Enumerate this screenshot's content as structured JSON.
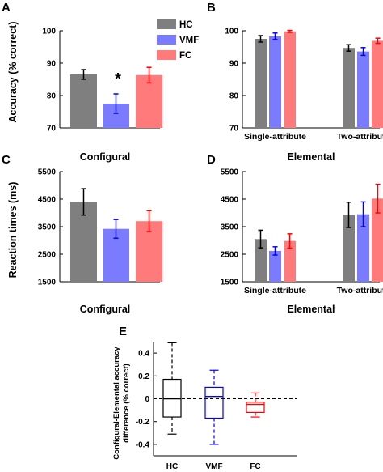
{
  "colors": {
    "HC": "#7f7f7f",
    "VMF": "#7b7bff",
    "FC": "#ff7b7b",
    "HC_err": "#000000",
    "VMF_err": "#0000ff",
    "FC_err": "#ff0000"
  },
  "legend": [
    "HC",
    "VMF",
    "FC"
  ],
  "shared_labels": {
    "accuracy_ylabel": "Accuracy (% correct)",
    "rt_ylabel": "Reaction times (ms)",
    "configural": "Configural",
    "elemental": "Elemental"
  },
  "chart_data": [
    {
      "panel": "A",
      "type": "bar",
      "ylabel": "Accuracy (% correct)",
      "xlabel": "Configural",
      "ylim": [
        70,
        100
      ],
      "yticks": [
        "70",
        "80",
        "90",
        "100"
      ],
      "series": [
        {
          "name": "HC",
          "value": 86.5,
          "err": 1.5
        },
        {
          "name": "VMF",
          "value": 77.5,
          "err": 3.0
        },
        {
          "name": "FC",
          "value": 86.3,
          "err": 2.4
        }
      ],
      "annotation": "*"
    },
    {
      "panel": "B",
      "type": "bar",
      "xlabel": "Elemental",
      "ylim": [
        70,
        100
      ],
      "yticks": [
        "70",
        "80",
        "90",
        "100"
      ],
      "categories": [
        "Single-attribute",
        "Two-attribute"
      ],
      "series": [
        {
          "name": "HC",
          "values": [
            97.5,
            94.7
          ],
          "err": [
            1.0,
            1.0
          ]
        },
        {
          "name": "VMF",
          "values": [
            98.3,
            93.6
          ],
          "err": [
            1.0,
            1.2
          ]
        },
        {
          "name": "FC",
          "values": [
            99.8,
            96.9
          ],
          "err": [
            0.3,
            0.8
          ]
        }
      ]
    },
    {
      "panel": "C",
      "type": "bar",
      "ylabel": "Reaction times (ms)",
      "xlabel": "Configural",
      "ylim": [
        1500,
        5500
      ],
      "yticks": [
        "1500",
        "2500",
        "3500",
        "4500",
        "5500"
      ],
      "series": [
        {
          "name": "HC",
          "value": 4400,
          "err": 480
        },
        {
          "name": "VMF",
          "value": 3420,
          "err": 340
        },
        {
          "name": "FC",
          "value": 3700,
          "err": 380
        }
      ]
    },
    {
      "panel": "D",
      "type": "bar",
      "xlabel": "Elemental",
      "ylim": [
        1500,
        5500
      ],
      "yticks": [
        "1500",
        "2500",
        "3500",
        "4500",
        "5500"
      ],
      "categories": [
        "Single-attribute",
        "Two-attribute"
      ],
      "series": [
        {
          "name": "HC",
          "values": [
            3050,
            3930
          ],
          "err": [
            320,
            460
          ]
        },
        {
          "name": "VMF",
          "values": [
            2620,
            3950
          ],
          "err": [
            150,
            450
          ]
        },
        {
          "name": "FC",
          "values": [
            2980,
            4520
          ],
          "err": [
            260,
            520
          ]
        }
      ]
    },
    {
      "panel": "E",
      "type": "boxplot",
      "ylabel": "Configural-Elemental accuracy difference (% correct)",
      "ylabel_lines": [
        "Configural-Elemental accuracy",
        "difference (% correct)"
      ],
      "ylim": [
        -0.5,
        0.5
      ],
      "yticks": [
        "-0.4",
        "-0.2",
        "0",
        "0.2",
        "0.4"
      ],
      "categories": [
        "HC",
        "VMF",
        "FC"
      ],
      "boxes": [
        {
          "name": "HC",
          "min": -0.31,
          "q1": -0.16,
          "median": 0.0,
          "q3": 0.17,
          "max": 0.49
        },
        {
          "name": "VMF",
          "min": -0.4,
          "q1": -0.17,
          "median": 0.02,
          "q3": 0.1,
          "max": 0.25
        },
        {
          "name": "FC",
          "min": -0.16,
          "q1": -0.12,
          "median": -0.05,
          "q3": -0.03,
          "max": 0.05
        }
      ],
      "reference_line": 0
    }
  ]
}
